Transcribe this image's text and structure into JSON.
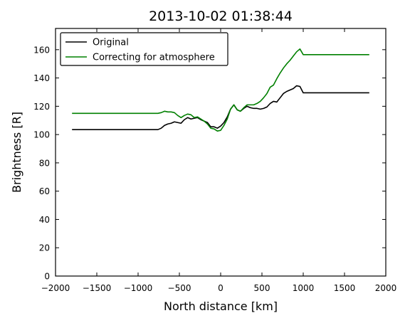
{
  "chart_data": {
    "type": "line",
    "title": "2013-10-02 01:38:44",
    "xlabel": "North distance [km]",
    "ylabel": "Brightness [R]",
    "xlim": [
      -2000,
      2000
    ],
    "ylim": [
      0,
      175
    ],
    "xticks": [
      -2000,
      -1500,
      -1000,
      -500,
      0,
      500,
      1000,
      1500,
      2000
    ],
    "xtick_labels": [
      "−2000",
      "−1500",
      "−1000",
      "−500",
      "0",
      "500",
      "1000",
      "1500",
      "2000"
    ],
    "yticks": [
      0,
      20,
      40,
      60,
      80,
      100,
      120,
      140,
      160
    ],
    "ytick_labels": [
      "0",
      "20",
      "40",
      "60",
      "80",
      "100",
      "120",
      "140",
      "160"
    ],
    "grid": false,
    "legend_position": "top-left",
    "series": [
      {
        "name": "Original",
        "color": "#000000",
        "points": [
          [
            -1800,
            103.5
          ],
          [
            -760,
            103.5
          ],
          [
            -720,
            104.5
          ],
          [
            -680,
            106.5
          ],
          [
            -640,
            107.5
          ],
          [
            -600,
            108
          ],
          [
            -560,
            109
          ],
          [
            -520,
            108.5
          ],
          [
            -480,
            108
          ],
          [
            -440,
            110.5
          ],
          [
            -400,
            112
          ],
          [
            -360,
            111
          ],
          [
            -320,
            111.5
          ],
          [
            -280,
            112
          ],
          [
            -240,
            110.5
          ],
          [
            -200,
            109.5
          ],
          [
            -160,
            108.5
          ],
          [
            -120,
            105.5
          ],
          [
            -80,
            105.5
          ],
          [
            -40,
            104.5
          ],
          [
            0,
            106
          ],
          [
            40,
            108.5
          ],
          [
            80,
            112.5
          ],
          [
            120,
            118
          ],
          [
            160,
            121
          ],
          [
            200,
            117.5
          ],
          [
            240,
            116.5
          ],
          [
            280,
            118.5
          ],
          [
            320,
            120
          ],
          [
            360,
            119
          ],
          [
            400,
            118.5
          ],
          [
            440,
            118.5
          ],
          [
            480,
            118
          ],
          [
            520,
            118.5
          ],
          [
            560,
            119.5
          ],
          [
            600,
            122
          ],
          [
            640,
            123.5
          ],
          [
            680,
            123
          ],
          [
            720,
            126
          ],
          [
            760,
            129
          ],
          [
            800,
            130.5
          ],
          [
            840,
            131.5
          ],
          [
            880,
            132.5
          ],
          [
            920,
            134.5
          ],
          [
            960,
            134
          ],
          [
            1000,
            129.5
          ],
          [
            1800,
            129.5
          ]
        ]
      },
      {
        "name": "Correcting for atmosphere",
        "color": "#008000",
        "points": [
          [
            -1800,
            115
          ],
          [
            -760,
            115
          ],
          [
            -720,
            115.5
          ],
          [
            -680,
            116.5
          ],
          [
            -640,
            116
          ],
          [
            -600,
            116
          ],
          [
            -560,
            115.5
          ],
          [
            -520,
            113.5
          ],
          [
            -480,
            112
          ],
          [
            -440,
            113.5
          ],
          [
            -400,
            114.5
          ],
          [
            -360,
            114
          ],
          [
            -320,
            112
          ],
          [
            -280,
            112.5
          ],
          [
            -240,
            111
          ],
          [
            -200,
            109.5
          ],
          [
            -160,
            107.5
          ],
          [
            -120,
            104.5
          ],
          [
            -80,
            104
          ],
          [
            -40,
            102.5
          ],
          [
            0,
            103
          ],
          [
            40,
            106.5
          ],
          [
            80,
            111
          ],
          [
            120,
            118
          ],
          [
            160,
            121
          ],
          [
            200,
            117.5
          ],
          [
            240,
            116.5
          ],
          [
            280,
            119
          ],
          [
            320,
            121
          ],
          [
            360,
            121
          ],
          [
            400,
            121
          ],
          [
            440,
            122
          ],
          [
            480,
            123.5
          ],
          [
            520,
            126
          ],
          [
            560,
            129
          ],
          [
            600,
            133.5
          ],
          [
            640,
            135
          ],
          [
            680,
            139.5
          ],
          [
            720,
            143.5
          ],
          [
            760,
            147
          ],
          [
            800,
            150
          ],
          [
            840,
            152.5
          ],
          [
            880,
            155.5
          ],
          [
            920,
            158.5
          ],
          [
            960,
            160.5
          ],
          [
            1000,
            156.5
          ],
          [
            1800,
            156.5
          ]
        ]
      }
    ]
  }
}
